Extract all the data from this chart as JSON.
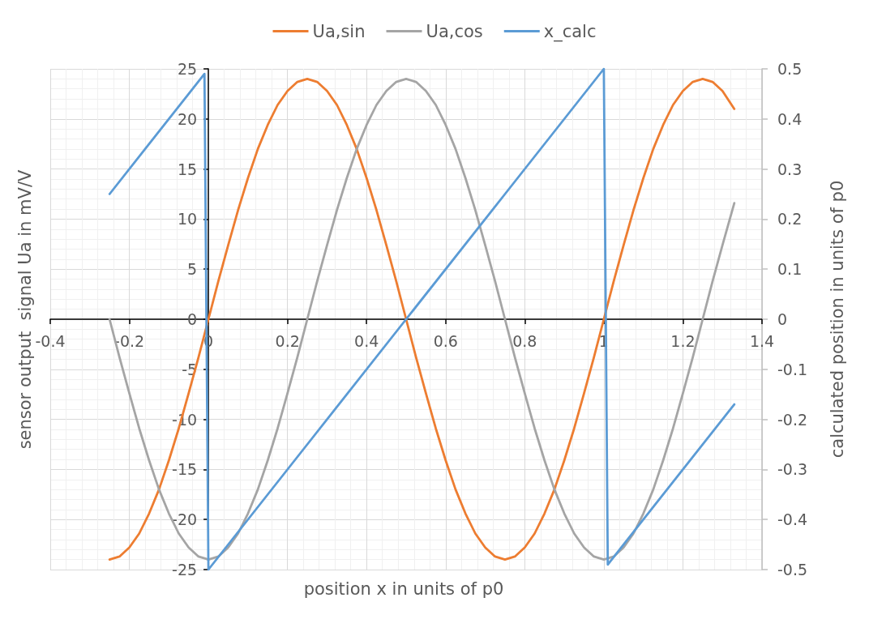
{
  "chart_data": {
    "type": "line",
    "xlabel": "position x in units of p0",
    "ylabel": "sensor output  signal Ua in mV/V",
    "y2label": "calculated position in units of p0",
    "x": [
      -0.25,
      -0.225,
      -0.2,
      -0.175,
      -0.15,
      -0.125,
      -0.1,
      -0.075,
      -0.05,
      -0.025,
      0,
      0.025,
      0.05,
      0.075,
      0.1,
      0.125,
      0.15,
      0.175,
      0.2,
      0.225,
      0.25,
      0.275,
      0.3,
      0.325,
      0.35,
      0.375,
      0.4,
      0.425,
      0.45,
      0.475,
      0.5,
      0.525,
      0.55,
      0.575,
      0.6,
      0.625,
      0.65,
      0.675,
      0.7,
      0.725,
      0.75,
      0.775,
      0.8,
      0.825,
      0.85,
      0.875,
      0.9,
      0.925,
      0.95,
      0.975,
      1,
      1.025,
      1.05,
      1.075,
      1.1,
      1.125,
      1.15,
      1.175,
      1.2,
      1.225,
      1.25,
      1.275,
      1.3,
      1.33
    ],
    "series": [
      {
        "name": "Ua,sin",
        "color": "#ed7d31",
        "values": [
          -24,
          -23.7,
          -22.8,
          -21.4,
          -19.4,
          -17,
          -14.1,
          -10.9,
          -7.4,
          -3.8,
          0,
          3.8,
          7.4,
          10.9,
          14.1,
          17,
          19.4,
          21.4,
          22.8,
          23.7,
          24,
          23.7,
          22.8,
          21.4,
          19.4,
          17,
          14.1,
          10.9,
          7.4,
          3.8,
          0,
          -3.8,
          -7.4,
          -10.9,
          -14.1,
          -17,
          -19.4,
          -21.4,
          -22.8,
          -23.7,
          -24,
          -23.7,
          -22.8,
          -21.4,
          -19.4,
          -17,
          -14.1,
          -10.9,
          -7.4,
          -3.8,
          0,
          3.8,
          7.4,
          10.9,
          14.1,
          17,
          19.4,
          21.4,
          22.8,
          23.7,
          24,
          23.7,
          22.8,
          21
        ]
      },
      {
        "name": "Ua,cos",
        "color": "#a5a5a5",
        "values": [
          0,
          -3.8,
          -7.4,
          -10.9,
          -14.1,
          -17,
          -19.4,
          -21.4,
          -22.8,
          -23.7,
          -24,
          -23.7,
          -22.8,
          -21.4,
          -19.4,
          -17,
          -14.1,
          -10.9,
          -7.4,
          -3.8,
          0,
          3.8,
          7.4,
          10.9,
          14.1,
          17,
          19.4,
          21.4,
          22.8,
          23.7,
          24,
          23.7,
          22.8,
          21.4,
          19.4,
          17,
          14.1,
          10.9,
          7.4,
          3.8,
          0,
          -3.8,
          -7.4,
          -10.9,
          -14.1,
          -17,
          -19.4,
          -21.4,
          -22.8,
          -23.7,
          -24,
          -23.7,
          -22.8,
          -21.4,
          -19.4,
          -17,
          -14.1,
          -10.9,
          -7.4,
          -3.8,
          0,
          3.8,
          7.4,
          11.6
        ]
      },
      {
        "name": "x_calc",
        "color": "#5b9bd5",
        "axis": "y2",
        "x": [
          -0.25,
          -0.15,
          -0.05,
          -0.01,
          0,
          0.25,
          0.5,
          0.75,
          1,
          1.01,
          1.1,
          1.2,
          1.33
        ],
        "values": [
          0.25,
          0.35,
          0.45,
          0.49,
          -0.5,
          -0.25,
          0,
          0.25,
          0.5,
          -0.49,
          -0.4,
          -0.3,
          -0.17
        ]
      }
    ],
    "xlim": [
      -0.4,
      1.4
    ],
    "xticks": [
      -0.4,
      -0.2,
      0,
      0.2,
      0.4,
      0.6,
      0.8,
      1,
      1.2,
      1.4
    ],
    "ylim": [
      -25,
      25
    ],
    "yticks": [
      -25,
      -20,
      -15,
      -10,
      -5,
      0,
      5,
      10,
      15,
      20,
      25
    ],
    "y2lim": [
      -0.5,
      0.5
    ],
    "y2ticks": [
      -0.5,
      -0.4,
      -0.3,
      -0.2,
      -0.1,
      0,
      0.1,
      0.2,
      0.3,
      0.4,
      0.5
    ],
    "grid": true,
    "legend": "top"
  }
}
